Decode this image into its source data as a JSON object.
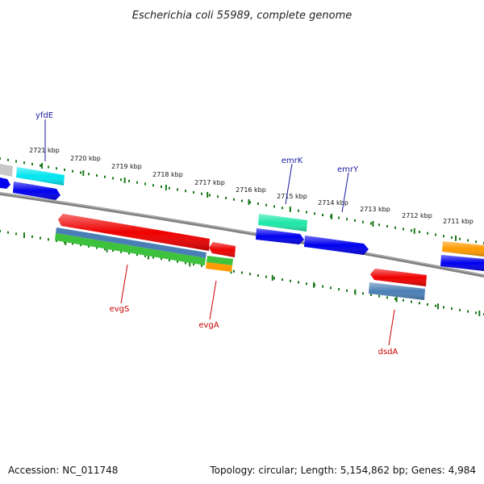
{
  "title": "Escherichia coli 55989, complete genome",
  "footer": {
    "accession": "Accession: NC_011748",
    "summary": "Topology: circular; Length: 5,154,862 bp; Genes: 4,984"
  },
  "ticks": [
    "2721 kbp",
    "2720 kbp",
    "2719 kbp",
    "2718 kbp",
    "2717 kbp",
    "2716 kbp",
    "2715 kbp",
    "2714 kbp",
    "2713 kbp",
    "2712 kbp",
    "2711 kbp"
  ],
  "genes_labeled": [
    {
      "name": "yfdE",
      "color": "#1a1aa0"
    },
    {
      "name": "emrK",
      "color": "#1a1aa0"
    },
    {
      "name": "emrY",
      "color": "#1a1aa0"
    },
    {
      "name": "evgS",
      "color": "#cc0000"
    },
    {
      "name": "evgA",
      "color": "#cc0000"
    },
    {
      "name": "dsdA",
      "color": "#cc0000"
    }
  ],
  "colors": {
    "blue": "#0000ee",
    "cyan": "#00e5f0",
    "teal": "#1ee8a8",
    "red": "#ee0000",
    "steel": "#4a7fb5",
    "green": "#3ec23e",
    "orange": "#ff9a00",
    "grey": "#c8c8c8",
    "backbone": "#808080",
    "tick": "#1a7a1a"
  }
}
